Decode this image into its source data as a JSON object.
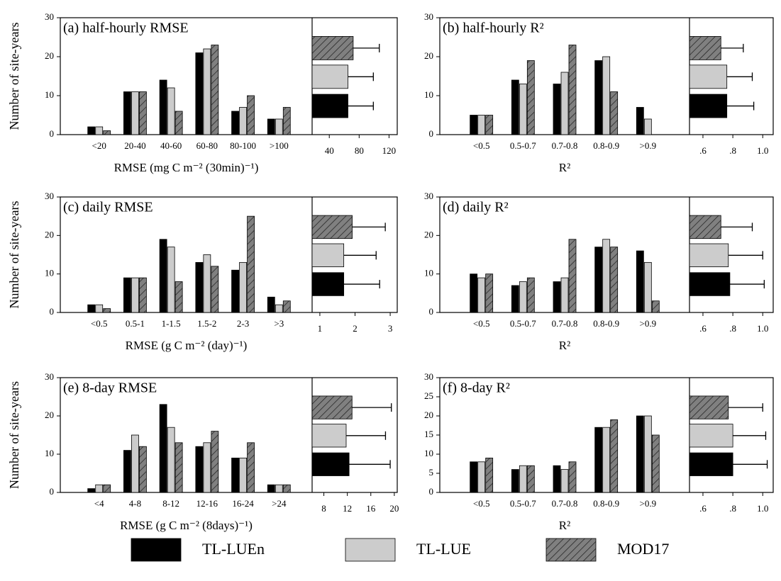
{
  "legend": {
    "series": [
      {
        "name": "TL-LUEn",
        "color": "#000000"
      },
      {
        "name": "TL-LUE",
        "color": "#cccccc"
      },
      {
        "name": "MOD17",
        "color": "#808080",
        "hatch": true
      }
    ]
  },
  "chart_data": [
    {
      "type": "bar",
      "title": "(a) half-hourly RMSE",
      "ylabel": "Number of site-years",
      "xlabel": "RMSE (mg C m⁻² (30min)⁻¹)",
      "categories": [
        "<20",
        "20-40",
        "40-60",
        "60-80",
        "80-100",
        ">100"
      ],
      "series": [
        {
          "values": [
            2,
            11,
            14,
            21,
            6,
            4
          ]
        },
        {
          "values": [
            2,
            11,
            12,
            22,
            7,
            4
          ]
        },
        {
          "values": [
            1,
            11,
            6,
            23,
            10,
            7
          ]
        }
      ],
      "ylim": [
        0,
        30
      ],
      "yticks": [
        0,
        10,
        20,
        30
      ],
      "inset": {
        "type": "bar",
        "orientation": "horizontal",
        "values": [
          65,
          65,
          72
        ],
        "errors": [
          34,
          34,
          35
        ],
        "xlim": [
          17,
          131
        ],
        "xticks": [
          40,
          80,
          120
        ]
      }
    },
    {
      "type": "bar",
      "title": "(b) half-hourly R²",
      "xlabel": "R²",
      "categories": [
        "<0.5",
        "0.5-0.7",
        "0.7-0.8",
        "0.8-0.9",
        ">0.9"
      ],
      "series": [
        {
          "values": [
            5,
            14,
            13,
            19,
            7
          ]
        },
        {
          "values": [
            5,
            13,
            16,
            20,
            4
          ]
        },
        {
          "values": [
            5,
            19,
            23,
            11,
            0
          ]
        }
      ],
      "ylim": [
        0,
        30
      ],
      "yticks": [
        0,
        10,
        20,
        30
      ],
      "inset": {
        "type": "bar",
        "orientation": "horizontal",
        "values": [
          0.76,
          0.76,
          0.72
        ],
        "errors": [
          0.18,
          0.17,
          0.15
        ],
        "xlim": [
          0.51,
          1.07
        ],
        "xticks": [
          {
            "value": 0.6,
            "label": ".6"
          },
          {
            "value": 0.8,
            "label": ".8"
          },
          {
            "value": 1,
            "label": "1.0"
          }
        ]
      }
    },
    {
      "type": "bar",
      "title": "(c) daily RMSE",
      "ylabel": "Number of site-years",
      "xlabel": "RMSE (g C m⁻² (day)⁻¹)",
      "categories": [
        "<0.5",
        "0.5-1",
        "1-1.5",
        "1.5-2",
        "2-3",
        ">3"
      ],
      "series": [
        {
          "values": [
            2,
            9,
            19,
            13,
            11,
            4
          ]
        },
        {
          "values": [
            2,
            9,
            17,
            15,
            13,
            2
          ]
        },
        {
          "values": [
            1,
            9,
            8,
            12,
            25,
            3
          ]
        }
      ],
      "ylim": [
        0,
        30
      ],
      "yticks": [
        0,
        10,
        20,
        30
      ],
      "inset": {
        "type": "bar",
        "orientation": "horizontal",
        "values": [
          1.68,
          1.68,
          1.92
        ],
        "errors": [
          1.02,
          0.92,
          0.94
        ],
        "xlim": [
          0.78,
          3.2
        ],
        "xticks": [
          1,
          2,
          3
        ]
      }
    },
    {
      "type": "bar",
      "title": "(d) daily R²",
      "xlabel": "R²",
      "categories": [
        "<0.5",
        "0.5-0.7",
        "0.7-0.8",
        "0.8-0.9",
        ">0.9"
      ],
      "series": [
        {
          "values": [
            10,
            7,
            8,
            17,
            16
          ]
        },
        {
          "values": [
            9,
            8,
            9,
            19,
            13
          ]
        },
        {
          "values": [
            10,
            9,
            19,
            17,
            3
          ]
        }
      ],
      "ylim": [
        0,
        30
      ],
      "yticks": [
        0,
        10,
        20,
        30
      ],
      "inset": {
        "type": "bar",
        "orientation": "horizontal",
        "values": [
          0.78,
          0.77,
          0.72
        ],
        "errors": [
          0.23,
          0.23,
          0.21
        ],
        "xlim": [
          0.51,
          1.07
        ],
        "xticks": [
          {
            "value": 0.6,
            "label": ".6"
          },
          {
            "value": 0.8,
            "label": ".8"
          },
          {
            "value": 1,
            "label": "1.0"
          }
        ]
      }
    },
    {
      "type": "bar",
      "title": "(e) 8-day RMSE",
      "ylabel": "Number of site-years",
      "xlabel": "RMSE (g C m⁻² (8days)⁻¹)",
      "categories": [
        "<4",
        "4-8",
        "8-12",
        "12-16",
        "16-24",
        ">24"
      ],
      "series": [
        {
          "values": [
            1,
            11,
            23,
            12,
            9,
            2
          ]
        },
        {
          "values": [
            2,
            15,
            17,
            13,
            9,
            2
          ]
        },
        {
          "values": [
            2,
            12,
            13,
            16,
            13,
            2
          ]
        }
      ],
      "ylim": [
        0,
        30
      ],
      "yticks": [
        0,
        10,
        20,
        30
      ],
      "inset": {
        "type": "bar",
        "orientation": "horizontal",
        "values": [
          12.3,
          11.8,
          12.8
        ],
        "errors": [
          7.0,
          6.7,
          6.7
        ],
        "xlim": [
          6.0,
          20.5
        ],
        "xticks": [
          8,
          12,
          16,
          20
        ]
      }
    },
    {
      "type": "bar",
      "title": "(f) 8-day R²",
      "xlabel": "R²",
      "categories": [
        "<0.5",
        "0.5-0.7",
        "0.7-0.8",
        "0.8-0.9",
        ">0.9"
      ],
      "series": [
        {
          "values": [
            8,
            6,
            7,
            17,
            20
          ]
        },
        {
          "values": [
            8,
            7,
            6,
            17,
            20
          ]
        },
        {
          "values": [
            9,
            7,
            8,
            19,
            15
          ]
        }
      ],
      "ylim": [
        0,
        30
      ],
      "yticks": [
        0,
        5,
        10,
        15,
        20,
        25,
        30
      ],
      "inset": {
        "type": "bar",
        "orientation": "horizontal",
        "values": [
          0.8,
          0.8,
          0.77
        ],
        "errors": [
          0.23,
          0.22,
          0.23
        ],
        "xlim": [
          0.51,
          1.07
        ],
        "xticks": [
          {
            "value": 0.6,
            "label": ".6"
          },
          {
            "value": 0.8,
            "label": ".8"
          },
          {
            "value": 1,
            "label": "1.0"
          }
        ]
      }
    }
  ]
}
